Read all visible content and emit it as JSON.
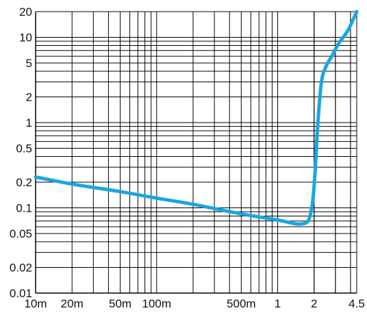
{
  "chart_data": {
    "type": "line",
    "title": "",
    "xlabel": "",
    "ylabel": "",
    "x_scale": "log",
    "y_scale": "log",
    "xlim": [
      0.01,
      4.5
    ],
    "ylim": [
      0.01,
      20
    ],
    "grid": true,
    "line_color": "#1aa6df",
    "x_tick_values": [
      0.01,
      0.02,
      0.05,
      0.1,
      0.5,
      1,
      2,
      4.5
    ],
    "x_tick_labels": [
      "10m",
      "20m",
      "50m",
      "100m",
      "500m",
      "1",
      "2",
      "4.5"
    ],
    "y_tick_values": [
      20,
      10,
      5,
      2,
      1,
      0.5,
      0.2,
      0.1,
      0.05,
      0.02,
      0.01
    ],
    "y_tick_labels": [
      "20",
      "10",
      "5",
      "2",
      "1",
      "0.5",
      "0.2",
      "0.1",
      "0.05",
      "0.02",
      "0.01"
    ],
    "series": [
      {
        "x": [
          0.01,
          0.02,
          0.05,
          0.1,
          0.2,
          0.5,
          1,
          1.4,
          1.6,
          1.75,
          1.85,
          1.95,
          2.05,
          2.15,
          2.3,
          2.5,
          2.8,
          3.2,
          3.8,
          4.5
        ],
        "y": [
          0.23,
          0.19,
          0.155,
          0.13,
          0.11,
          0.085,
          0.072,
          0.065,
          0.065,
          0.068,
          0.08,
          0.12,
          0.3,
          1.0,
          3.0,
          4.5,
          6.0,
          8.5,
          12,
          20
        ]
      }
    ]
  }
}
